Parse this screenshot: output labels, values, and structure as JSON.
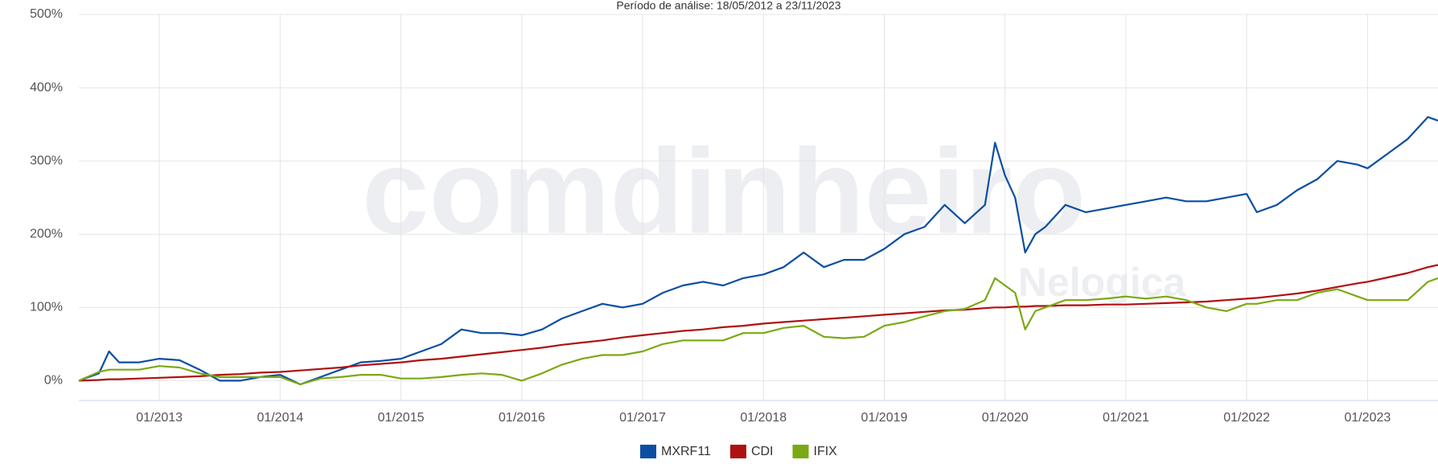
{
  "chart_data": {
    "type": "line",
    "subtitle": "Período de análise: 18/05/2012 a 23/11/2023",
    "watermark": [
      "comdinheiro",
      "Nelogica"
    ],
    "x": [
      "05/2012",
      "07/2012",
      "08/2012",
      "09/2012",
      "11/2012",
      "01/2013",
      "03/2013",
      "05/2013",
      "07/2013",
      "09/2013",
      "11/2013",
      "01/2014",
      "03/2014",
      "05/2014",
      "07/2014",
      "09/2014",
      "11/2014",
      "01/2015",
      "03/2015",
      "05/2015",
      "07/2015",
      "09/2015",
      "11/2015",
      "01/2016",
      "03/2016",
      "05/2016",
      "07/2016",
      "09/2016",
      "11/2016",
      "01/2017",
      "03/2017",
      "05/2017",
      "07/2017",
      "09/2017",
      "11/2017",
      "01/2018",
      "03/2018",
      "05/2018",
      "07/2018",
      "09/2018",
      "11/2018",
      "01/2019",
      "03/2019",
      "05/2019",
      "07/2019",
      "09/2019",
      "11/2019",
      "12/2019",
      "01/2020",
      "02/2020",
      "03/2020",
      "04/2020",
      "05/2020",
      "07/2020",
      "09/2020",
      "11/2020",
      "01/2021",
      "03/2021",
      "05/2021",
      "07/2021",
      "09/2021",
      "11/2021",
      "01/2022",
      "02/2022",
      "04/2022",
      "06/2022",
      "08/2022",
      "10/2022",
      "12/2022",
      "01/2023",
      "03/2023",
      "05/2023",
      "07/2023",
      "08/2023"
    ],
    "series": [
      {
        "name": "MXRF11",
        "color": "#0b4ea2",
        "values": [
          0,
          10,
          40,
          25,
          25,
          30,
          28,
          15,
          0,
          0,
          5,
          8,
          -5,
          5,
          15,
          25,
          27,
          30,
          40,
          50,
          70,
          65,
          65,
          62,
          70,
          85,
          95,
          105,
          100,
          105,
          120,
          130,
          135,
          130,
          140,
          145,
          155,
          175,
          155,
          165,
          165,
          180,
          200,
          210,
          240,
          215,
          240,
          325,
          280,
          250,
          175,
          200,
          210,
          240,
          230,
          235,
          240,
          245,
          250,
          245,
          245,
          250,
          255,
          230,
          240,
          260,
          275,
          300,
          295,
          290,
          310,
          330,
          360,
          355
        ]
      },
      {
        "name": "CDI",
        "color": "#b01010",
        "values": [
          0,
          1,
          2,
          2,
          3,
          4,
          5,
          6,
          8,
          9,
          11,
          12,
          14,
          16,
          18,
          21,
          23,
          25,
          28,
          30,
          33,
          36,
          39,
          42,
          45,
          49,
          52,
          55,
          59,
          62,
          65,
          68,
          70,
          73,
          75,
          78,
          80,
          82,
          84,
          86,
          88,
          90,
          92,
          94,
          96,
          97,
          99,
          100,
          100,
          101,
          101,
          102,
          102,
          103,
          103,
          104,
          104,
          105,
          106,
          107,
          108,
          110,
          112,
          113,
          116,
          119,
          123,
          128,
          133,
          135,
          141,
          147,
          155,
          158
        ]
      },
      {
        "name": "IFIX",
        "color": "#7aaa12",
        "values": [
          0,
          12,
          15,
          15,
          15,
          20,
          18,
          10,
          5,
          5,
          5,
          5,
          -5,
          3,
          5,
          8,
          8,
          3,
          3,
          5,
          8,
          10,
          8,
          0,
          10,
          22,
          30,
          35,
          35,
          40,
          50,
          55,
          55,
          55,
          65,
          65,
          72,
          75,
          60,
          58,
          60,
          75,
          80,
          88,
          95,
          98,
          110,
          140,
          130,
          120,
          70,
          95,
          100,
          110,
          110,
          112,
          115,
          112,
          115,
          110,
          100,
          95,
          105,
          105,
          110,
          110,
          120,
          125,
          115,
          110,
          110,
          110,
          135,
          140
        ]
      }
    ],
    "xlim": [
      "05/2012",
      "08/2023"
    ],
    "xticks": [
      "01/2013",
      "01/2014",
      "01/2015",
      "01/2016",
      "01/2017",
      "01/2018",
      "01/2019",
      "01/2020",
      "01/2021",
      "01/2022",
      "01/2023"
    ],
    "ylim": [
      -27,
      500
    ],
    "yticks": [
      {
        "value": 0,
        "label": "0%"
      },
      {
        "value": 100,
        "label": "100%"
      },
      {
        "value": 200,
        "label": "200%"
      },
      {
        "value": 300,
        "label": "300%"
      },
      {
        "value": 400,
        "label": "400%"
      },
      {
        "value": 500,
        "label": "500%"
      }
    ],
    "grid": true
  }
}
